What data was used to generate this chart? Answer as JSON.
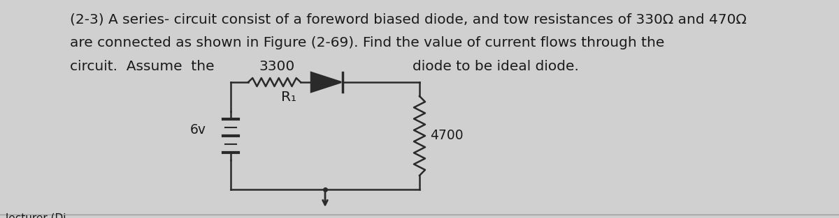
{
  "bg_color": "#d0d0d0",
  "text_color": "#1a1a1a",
  "line_color": "#2a2a2a",
  "title_line1": "(2-3) A series- circuit consist of a foreword biased diode, and tow resistances of 330Ω and 470Ω",
  "title_line2": "are connected as shown in Figure (2-69). Find the value of current flows through the",
  "title_line3_left": "circuit.  Assume  the",
  "title_line3_mid": "3300",
  "title_line3_right": "diode to be ideal diode.",
  "label_R1": "R₁",
  "label_6v": "6v",
  "label_4700": "4700",
  "footer": "lecturer (Di",
  "font_size_main": 14.5,
  "font_size_circuit": 13.5,
  "font_size_footer": 11
}
